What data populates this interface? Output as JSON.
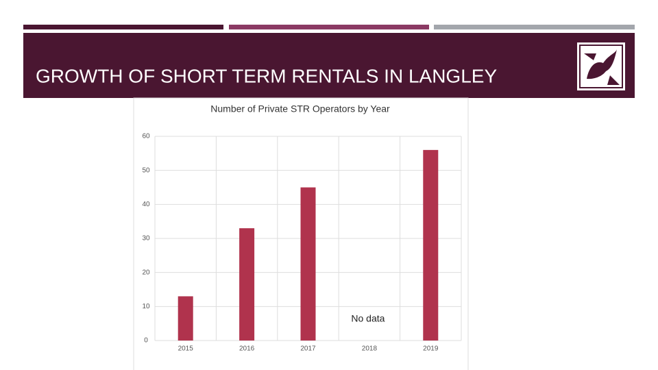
{
  "slide": {
    "title": "GROWTH OF SHORT TERM RENTALS IN LANGLEY"
  },
  "chart_data": {
    "type": "bar",
    "title": "Number of Private STR Operators by Year",
    "categories": [
      "2015",
      "2016",
      "2017",
      "2018",
      "2019"
    ],
    "values": [
      13,
      33,
      45,
      null,
      56
    ],
    "color": "#b0334d",
    "annotation": "No data",
    "ylim": [
      0,
      60
    ],
    "yticks": [
      0,
      10,
      20,
      30,
      40,
      50,
      60
    ],
    "grid": true
  }
}
